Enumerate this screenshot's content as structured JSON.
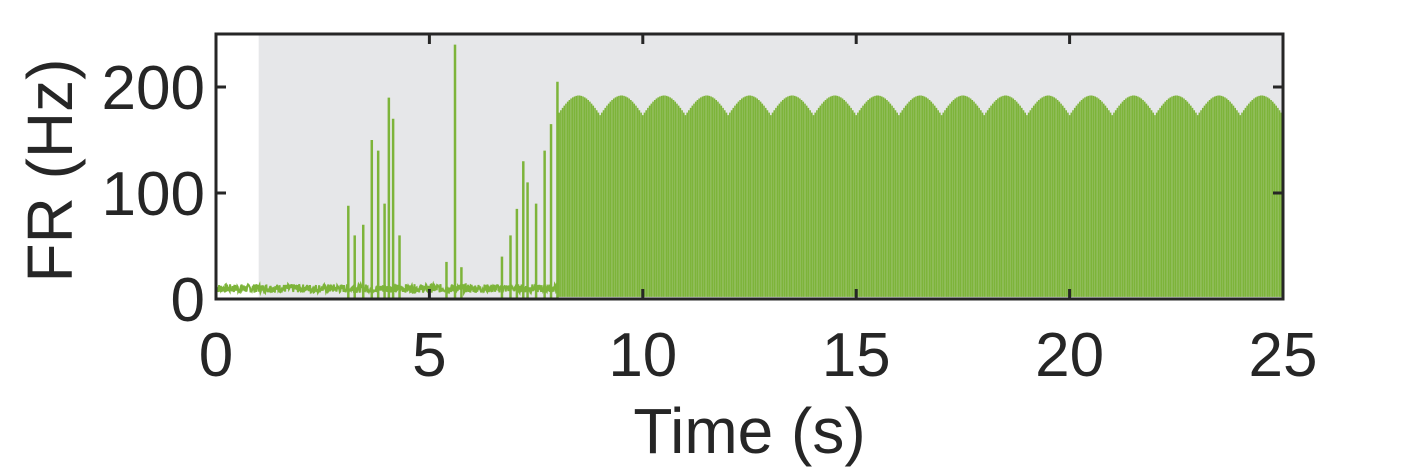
{
  "chart_data": {
    "type": "line",
    "xlabel": "Time (s)",
    "ylabel": "FR (Hz)",
    "xlim": [
      0,
      25
    ],
    "ylim": [
      0,
      250
    ],
    "xticks": [
      0,
      5,
      10,
      15,
      20,
      25
    ],
    "xtick_labels": [
      "0",
      "5",
      "10",
      "15",
      "20",
      "25"
    ],
    "yticks": [
      0,
      100,
      200
    ],
    "ytick_labels": [
      "0",
      "100",
      "200"
    ],
    "shaded_region": {
      "x_start": 1,
      "x_end": 25,
      "color": "#e6e7e9"
    },
    "grid": false,
    "legend": "none",
    "series": [
      {
        "color": "#7db43a",
        "baseline_rate_hz": 10,
        "bursts": [
          {
            "t": 3.1,
            "peak": 88
          },
          {
            "t": 3.25,
            "peak": 60
          },
          {
            "t": 3.45,
            "peak": 70
          },
          {
            "t": 3.65,
            "peak": 150
          },
          {
            "t": 3.8,
            "peak": 140
          },
          {
            "t": 3.95,
            "peak": 90
          },
          {
            "t": 4.05,
            "peak": 190
          },
          {
            "t": 4.15,
            "peak": 170
          },
          {
            "t": 4.3,
            "peak": 60
          },
          {
            "t": 5.4,
            "peak": 35
          },
          {
            "t": 5.6,
            "peak": 240
          },
          {
            "t": 5.75,
            "peak": 30
          },
          {
            "t": 6.7,
            "peak": 40
          },
          {
            "t": 6.9,
            "peak": 60
          },
          {
            "t": 7.05,
            "peak": 85
          },
          {
            "t": 7.2,
            "peak": 130
          },
          {
            "t": 7.3,
            "peak": 110
          },
          {
            "t": 7.5,
            "peak": 90
          },
          {
            "t": 7.7,
            "peak": 140
          },
          {
            "t": 7.85,
            "peak": 165
          },
          {
            "t": 8.0,
            "peak": 205
          }
        ],
        "sustained": {
          "t_start": 8.0,
          "t_end": 25,
          "peak_min_hz": 155,
          "peak_max_hz": 192,
          "modulation_period_s": 1.0,
          "trough_hz": 2
        }
      }
    ]
  }
}
